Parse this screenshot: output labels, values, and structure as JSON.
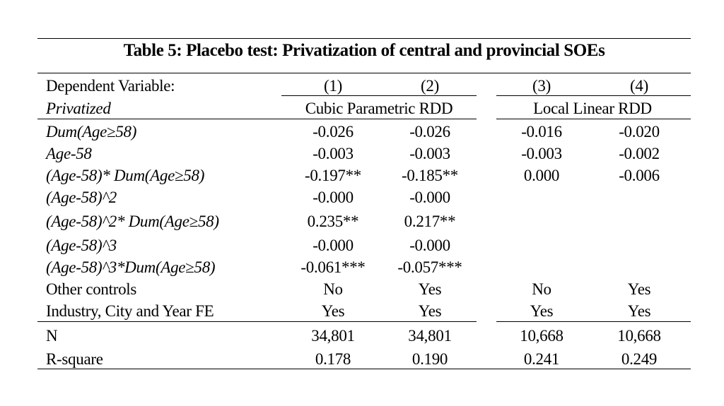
{
  "table": {
    "title": "Table 5: Placebo test: Privatization of central and provincial SOEs",
    "header": {
      "dep_var_label": "Dependent Variable:",
      "dep_var_name": "Privatized",
      "columns": [
        "(1)",
        "(2)",
        "(3)",
        "(4)"
      ],
      "groups": [
        "Cubic Parametric RDD",
        "Local Linear RDD"
      ]
    },
    "rows": [
      {
        "label": "Dum(Age≥58)",
        "values": [
          "-0.026",
          "-0.026",
          "-0.016",
          "-0.020"
        ]
      },
      {
        "label": "Age-58",
        "values": [
          "-0.003",
          "-0.003",
          "-0.003",
          "-0.002"
        ]
      },
      {
        "label": "(Age-58)* Dum(Age≥58)",
        "values": [
          "-0.197**",
          "-0.185**",
          "0.000",
          "-0.006"
        ]
      },
      {
        "label": "(Age-58)^2",
        "values": [
          "-0.000",
          "-0.000",
          "",
          ""
        ]
      },
      {
        "label": "(Age-58)^2* Dum(Age≥58)",
        "values": [
          "0.235**",
          "0.217**",
          "",
          ""
        ]
      },
      {
        "label": "(Age-58)^3",
        "values": [
          "-0.000",
          "-0.000",
          "",
          ""
        ]
      },
      {
        "label": "(Age-58)^3*Dum(Age≥58)",
        "values": [
          "-0.061***",
          "-0.057***",
          "",
          ""
        ]
      }
    ],
    "controls": [
      {
        "label": "Other controls",
        "values": [
          "No",
          "Yes",
          "No",
          "Yes"
        ]
      },
      {
        "label": "Industry, City and Year FE",
        "values": [
          "Yes",
          "Yes",
          "Yes",
          "Yes"
        ]
      }
    ],
    "stats": [
      {
        "label": "N",
        "values": [
          "34,801",
          "34,801",
          "10,668",
          "10,668"
        ]
      },
      {
        "label": "R-square",
        "values": [
          "0.178",
          "0.190",
          "0.241",
          "0.249"
        ]
      }
    ]
  }
}
